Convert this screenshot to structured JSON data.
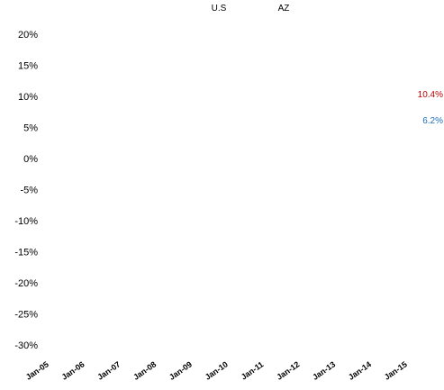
{
  "chart_data": {
    "type": "line",
    "title": "",
    "xlabel": "",
    "ylabel": "",
    "ylim": [
      -30,
      20
    ],
    "y_ticks": [
      "20%",
      "15%",
      "10%",
      "5%",
      "0%",
      "-5%",
      "-10%",
      "-15%",
      "-20%",
      "-25%",
      "-30%"
    ],
    "y_tick_values": [
      20,
      15,
      10,
      5,
      0,
      -5,
      -10,
      -15,
      -20,
      -25,
      -30
    ],
    "categories": [
      "Jan-05",
      "Jan-06",
      "Jan-07",
      "Jan-08",
      "Jan-09",
      "Jan-10",
      "Jan-11",
      "Jan-12",
      "Jan-13",
      "Jan-14",
      "Jan-15"
    ],
    "grid": false,
    "legend_placement": "top",
    "series": [
      {
        "name": "U.S",
        "color": "#1f6fb8",
        "end_label": "6.2%",
        "end_value": 6.2
      },
      {
        "name": "AZ",
        "color": "#c00000",
        "end_label": "10.4%",
        "end_value": 10.4
      }
    ]
  }
}
